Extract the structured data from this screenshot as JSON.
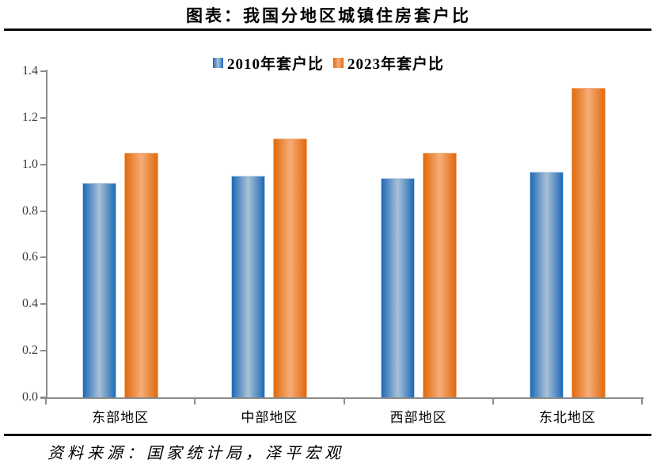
{
  "page": {
    "title": "图表：我国分地区城镇住房套户比",
    "source": "资料来源：国家统计局，泽平宏观"
  },
  "chart_data": {
    "type": "bar",
    "title": "图表：我国分地区城镇住房套户比",
    "categories": [
      "东部地区",
      "中部地区",
      "西部地区",
      "东北地区"
    ],
    "series": [
      {
        "name": "2010年套户比",
        "values": [
          0.92,
          0.95,
          0.94,
          0.97
        ],
        "color_edge": "#1d6ab8",
        "color_center": "#a9c1d6",
        "border_color": "#bcd2e8"
      },
      {
        "name": "2023年套户比",
        "values": [
          1.05,
          1.11,
          1.05,
          1.33
        ],
        "color_edge": "#e06a0c",
        "color_center": "#f6ad79",
        "border_color": "#f4b183"
      }
    ],
    "ylim": [
      0,
      1.4
    ],
    "ytick_step": 0.2,
    "ytick_labels": [
      "0.0",
      "0.2",
      "0.4",
      "0.6",
      "0.8",
      "1.0",
      "1.2",
      "1.4"
    ],
    "grid": false,
    "legend_position": "top-center",
    "axis_color": "#8c8c8c",
    "tick_label_color": "#3a3a3a",
    "source_note": "资料来源：国家统计局，泽平宏观"
  }
}
